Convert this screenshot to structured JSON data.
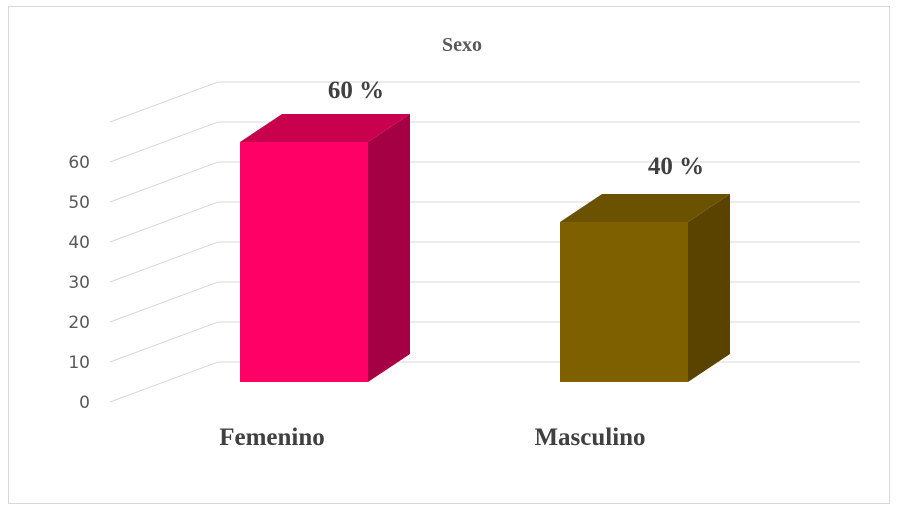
{
  "chart_data": {
    "type": "bar",
    "style": "3d-column",
    "title": "Sexo",
    "categories": [
      "Femenino",
      "Masculino"
    ],
    "values": [
      60,
      40
    ],
    "data_labels": [
      "60 %",
      "40  %"
    ],
    "colors": [
      "#ff0066",
      "#7f6000"
    ],
    "side_colors": [
      "#a50044",
      "#5a4300"
    ],
    "top_colors": [
      "#c8004e",
      "#6b5200"
    ],
    "yticks": [
      "0",
      "10",
      "20",
      "30",
      "40",
      "50",
      "60"
    ],
    "ylim": [
      0,
      60
    ],
    "grid": true,
    "legend": "none",
    "xlabel": "",
    "ylabel": ""
  }
}
